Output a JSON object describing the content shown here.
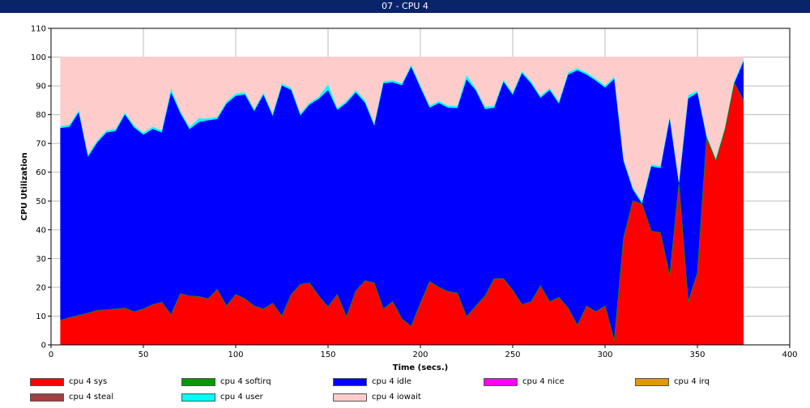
{
  "window": {
    "title": "07 - CPU 4"
  },
  "colors": {
    "sys": "#ff0000",
    "softirq": "#009900",
    "idle": "#0000ff",
    "nice": "#ff00ff",
    "irq": "#e09900",
    "steal": "#a04040",
    "user": "#00ffff",
    "iowait": "#ffcccc",
    "grid": "#bbbbbb",
    "titlebar": "#0a246a"
  },
  "chart_data": {
    "type": "area",
    "stacked": true,
    "title": "",
    "xlabel": "Time (secs.)",
    "ylabel": "CPU Utilization",
    "xlim": [
      0,
      400
    ],
    "ylim": [
      0,
      110
    ],
    "xticks": [
      0,
      50,
      100,
      150,
      200,
      250,
      300,
      350,
      400
    ],
    "yticks": [
      0,
      10,
      20,
      30,
      40,
      50,
      60,
      70,
      80,
      90,
      100,
      110
    ],
    "grid": true,
    "legend_position": "bottom",
    "x": [
      5,
      10,
      15,
      20,
      25,
      30,
      35,
      40,
      45,
      50,
      55,
      60,
      65,
      70,
      75,
      80,
      85,
      90,
      95,
      100,
      105,
      110,
      115,
      120,
      125,
      130,
      135,
      140,
      145,
      150,
      155,
      160,
      165,
      170,
      175,
      180,
      185,
      190,
      195,
      200,
      205,
      210,
      215,
      220,
      225,
      230,
      235,
      240,
      245,
      250,
      255,
      260,
      265,
      270,
      275,
      280,
      285,
      290,
      295,
      300,
      305,
      310,
      315,
      320,
      325,
      330,
      335,
      340,
      345,
      350,
      355,
      360,
      365,
      370,
      375
    ],
    "series": [
      {
        "name": "cpu 4 sys",
        "key": "sys",
        "values": [
          8.5,
          9.5,
          10.2,
          11,
          12,
          12.2,
          12.5,
          12.8,
          11.5,
          12.5,
          14,
          14.8,
          10.5,
          17.8,
          17,
          16.8,
          16,
          19.3,
          13.5,
          17.5,
          16,
          13.5,
          12.5,
          14.5,
          10,
          17.5,
          21,
          21.5,
          17,
          13.2,
          17.5,
          9.8,
          18.7,
          22.3,
          21.5,
          12.5,
          15,
          9,
          6.5,
          14.5,
          22,
          20,
          18.5,
          18,
          9.8,
          13.5,
          17,
          23,
          23,
          19,
          14,
          15,
          20.5,
          15,
          16.5,
          12.8,
          6.8,
          13.5,
          11.5,
          13.5,
          1.5,
          37,
          50,
          49,
          39.5,
          39,
          24,
          56,
          15,
          25,
          72,
          64,
          75,
          91,
          85
        ]
      },
      {
        "name": "cpu 4 softirq",
        "key": "softirq",
        "values": [
          0,
          0,
          0,
          0,
          0,
          0,
          0,
          0,
          0,
          0,
          0,
          0,
          0,
          0,
          0,
          0,
          0,
          0,
          0,
          0,
          0,
          0,
          0,
          0,
          0,
          0,
          0,
          0,
          0,
          0,
          0,
          0,
          0,
          0,
          0,
          0,
          0,
          0,
          0,
          0,
          0,
          0,
          0,
          0,
          0,
          0,
          0,
          0,
          0,
          0,
          0,
          0,
          0,
          0,
          0,
          0,
          0,
          0,
          0,
          0,
          0,
          0,
          0,
          0,
          0,
          0,
          0,
          0,
          0,
          0,
          0,
          0,
          0,
          0,
          0
        ]
      },
      {
        "name": "cpu 4 idle",
        "key": "idle",
        "values": [
          66.8,
          66.3,
          70.6,
          54.3,
          58.3,
          61.6,
          61.8,
          67.2,
          64,
          60.5,
          61,
          59,
          77.2,
          62.7,
          57.9,
          60.6,
          62,
          59.2,
          70.3,
          69,
          71,
          67.7,
          74.4,
          65,
          80.1,
          71.1,
          58.7,
          62,
          68.5,
          75.3,
          64.1,
          74.3,
          69,
          61.8,
          54.6,
          78.4,
          76.2,
          81.2,
          90.1,
          74.9,
          60.4,
          64,
          63.9,
          64.3,
          82.4,
          74.9,
          64.9,
          59.4,
          68.4,
          67.9,
          80.4,
          75.8,
          65.3,
          73.5,
          67.3,
          81.1,
          88.6,
          80.4,
          80.3,
          75.9,
          90.9,
          26.8,
          4,
          0,
          22.5,
          22.4,
          54.6,
          0,
          70.6,
          62.6,
          0,
          0,
          0,
          0,
          13.5
        ]
      },
      {
        "name": "cpu 4 nice",
        "key": "nice",
        "values": [
          0,
          0,
          0,
          0,
          0,
          0,
          0,
          0,
          0,
          0,
          0,
          0,
          0,
          0,
          0,
          0,
          0,
          0,
          0,
          0,
          0,
          0,
          0,
          0,
          0,
          0,
          0,
          0,
          0,
          0,
          0,
          0,
          0,
          0,
          0,
          0,
          0,
          0,
          0,
          0,
          0,
          0,
          0,
          0,
          0,
          0,
          0,
          0,
          0,
          0,
          0,
          0,
          0,
          0,
          0,
          0,
          0,
          0,
          0,
          0,
          0,
          0,
          0,
          0,
          0,
          0,
          0,
          0,
          0,
          0,
          0,
          0,
          0,
          0,
          0
        ]
      },
      {
        "name": "cpu 4 irq",
        "key": "irq",
        "values": [
          0,
          0,
          0,
          0,
          0,
          0,
          0,
          0,
          0,
          0,
          0,
          0,
          0,
          0,
          0,
          0,
          0,
          0,
          0,
          0,
          0,
          0,
          0,
          0,
          0,
          0,
          0,
          0,
          0,
          0,
          0,
          0,
          0,
          0,
          0,
          0,
          0,
          0,
          0,
          0,
          0,
          0,
          0,
          0,
          0,
          0,
          0,
          0,
          0,
          0,
          0,
          0,
          0,
          0,
          0,
          0,
          0,
          0,
          0,
          0,
          0,
          0,
          0,
          0,
          0,
          0,
          0,
          0,
          0,
          0,
          0,
          0,
          0,
          0,
          0
        ]
      },
      {
        "name": "cpu 4 steal",
        "key": "steal",
        "values": [
          0,
          0,
          0,
          0,
          0,
          0,
          0,
          0,
          0,
          0,
          0,
          0,
          0,
          0,
          0,
          0,
          0,
          0,
          0,
          0,
          0,
          0,
          0,
          0,
          0,
          0,
          0,
          0,
          0,
          0,
          0,
          0,
          0,
          0,
          0,
          0,
          0,
          0,
          0,
          0,
          0,
          0,
          0,
          0,
          0,
          0,
          0,
          0,
          0,
          0,
          0,
          0,
          0,
          0,
          0,
          0,
          0,
          0,
          0,
          0,
          0,
          0,
          0,
          0,
          0,
          0,
          0,
          0,
          0,
          0,
          0,
          0,
          0,
          0,
          0
        ]
      },
      {
        "name": "cpu 4 user",
        "key": "user",
        "values": [
          0.7,
          0.7,
          0.7,
          0.7,
          0.7,
          0.7,
          0.7,
          0.7,
          0.7,
          0.7,
          0.8,
          0.7,
          1.3,
          0.7,
          0.8,
          1.3,
          0.7,
          0.7,
          0.7,
          0.8,
          0.7,
          0.7,
          0.7,
          0.8,
          0.7,
          0.7,
          0.7,
          0.7,
          0.7,
          2,
          0.7,
          0.7,
          0.8,
          0.9,
          0.7,
          0.7,
          0.7,
          0.7,
          0.7,
          0.7,
          0.7,
          0.7,
          0.7,
          0.7,
          1.5,
          0.7,
          0.8,
          0.7,
          0.7,
          0.7,
          0.7,
          0.7,
          0.7,
          0.7,
          0.7,
          0.8,
          0.7,
          0.7,
          0.7,
          0.7,
          0.8,
          0.7,
          0.7,
          0.7,
          0.7,
          0.7,
          0.7,
          0.7,
          1.2,
          0.7,
          0.7,
          0.7,
          0.7,
          0.7,
          0.7
        ]
      },
      {
        "name": "cpu 4 iowait",
        "key": "iowait",
        "values": [
          24,
          23.5,
          18.5,
          34,
          29,
          25.5,
          25,
          19.3,
          23.8,
          26.3,
          24.2,
          25.5,
          11,
          18.8,
          24.3,
          21.3,
          21.3,
          20.8,
          15.5,
          12.7,
          12.3,
          18.1,
          12.4,
          19.7,
          9.2,
          10.7,
          19.6,
          15.8,
          13.8,
          9.5,
          17.7,
          15.2,
          11.5,
          15,
          23.2,
          8.4,
          8.1,
          9.1,
          2.7,
          9.9,
          16.9,
          15.3,
          16.9,
          17,
          6.3,
          10.9,
          17.3,
          16.9,
          7.9,
          12.4,
          4.9,
          8.5,
          13.5,
          10.8,
          15.5,
          5.3,
          3.9,
          5.4,
          7.5,
          9.9,
          6.8,
          35.5,
          45.3,
          50.3,
          37.3,
          37.9,
          20.7,
          43.3,
          13.2,
          11.7,
          27.3,
          35.3,
          24.3,
          8.3,
          0.8
        ]
      }
    ]
  },
  "legend": [
    {
      "key": "sys",
      "label": "cpu 4 sys"
    },
    {
      "key": "softirq",
      "label": "cpu 4 softirq"
    },
    {
      "key": "idle",
      "label": "cpu 4 idle"
    },
    {
      "key": "nice",
      "label": "cpu 4 nice"
    },
    {
      "key": "irq",
      "label": "cpu 4 irq"
    },
    {
      "key": "steal",
      "label": "cpu 4 steal"
    },
    {
      "key": "user",
      "label": "cpu 4 user"
    },
    {
      "key": "iowait",
      "label": "cpu 4 iowait"
    }
  ]
}
